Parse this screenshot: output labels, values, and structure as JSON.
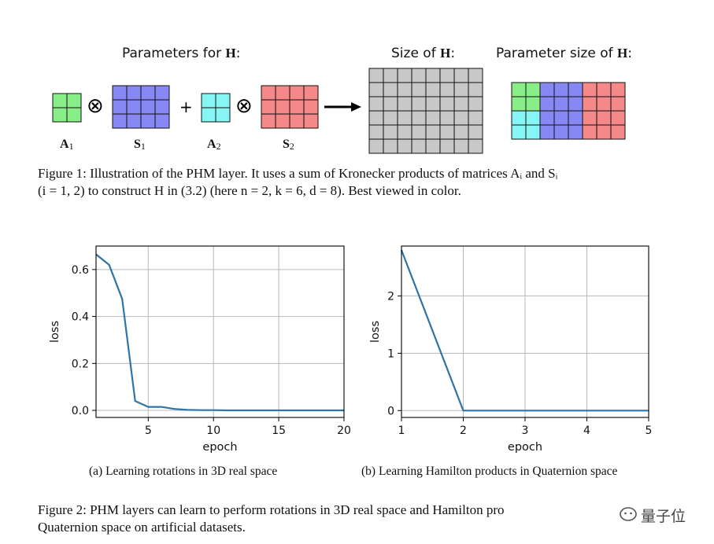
{
  "figure1": {
    "params_header_text": "Parameters for ",
    "size_header_text": "Size of ",
    "param_size_header_text": "Parameter size of ",
    "h_symbol": "H",
    "colon": ":",
    "kron_symbol": "⊗",
    "plus_symbol": "+",
    "labels": {
      "a1": "A",
      "a1_sub": "1",
      "s1": "S",
      "s1_sub": "1",
      "a2": "A",
      "a2_sub": "2",
      "s2": "S",
      "s2_sub": "2"
    },
    "colors": {
      "a1": "#88ee88",
      "s1": "#8888f5",
      "a2": "#88f5f5",
      "s2": "#f58888",
      "h": "#c8c8c8"
    },
    "caption_line1": "Figure 1: Illustration of the PHM layer. It uses a sum of Kronecker products of matrices Aᵢ and Sᵢ",
    "caption_line2": "(i = 1, 2) to construct H in (3.2) (here n = 2, k = 6, d = 8). Best viewed in color."
  },
  "figure2": {
    "subcaption_a": "(a)  Learning rotations in 3D real space",
    "subcaption_b": "(b)  Learning Hamilton products in Quaternion space",
    "caption_line1": "Figure 2:  PHM layers can learn to perform rotations in 3D real space and Hamilton pro",
    "caption_line2": "Quaternion space on artificial datasets."
  },
  "watermark": "量子位",
  "chart_data": [
    {
      "type": "line",
      "xlabel": "epoch",
      "ylabel": "loss",
      "xlim": [
        1,
        20
      ],
      "ylim": [
        -0.03,
        0.7
      ],
      "xticks": [
        5,
        10,
        15,
        20
      ],
      "yticks": [
        0.0,
        0.2,
        0.4,
        0.6
      ],
      "ytick_labels": [
        "0.0",
        "0.2",
        "0.4",
        "0.6"
      ],
      "grid": true,
      "color": "#2f74a8",
      "series": [
        {
          "x": [
            1,
            2,
            3,
            4,
            5,
            6,
            7,
            8,
            9,
            10,
            11,
            12,
            13,
            14,
            15,
            16,
            17,
            18,
            19,
            20
          ],
          "y": [
            0.665,
            0.62,
            0.475,
            0.04,
            0.015,
            0.015,
            0.006,
            0.002,
            0.001,
            0.001,
            0.0,
            0.0,
            0.0,
            0.0,
            0.0,
            0.0,
            0.0,
            0.0,
            0.0,
            0.0
          ]
        }
      ]
    },
    {
      "type": "line",
      "xlabel": "epoch",
      "ylabel": "loss",
      "xlim": [
        1,
        5
      ],
      "ylim": [
        -0.12,
        2.87
      ],
      "xticks": [
        1,
        2,
        3,
        4,
        5
      ],
      "yticks": [
        0,
        1,
        2
      ],
      "ytick_labels": [
        "0",
        "1",
        "2"
      ],
      "grid": true,
      "color": "#2f74a8",
      "series": [
        {
          "x": [
            1,
            2,
            3,
            4,
            5
          ],
          "y": [
            2.8,
            0.0,
            0.0,
            0.0,
            0.0
          ]
        }
      ]
    }
  ]
}
